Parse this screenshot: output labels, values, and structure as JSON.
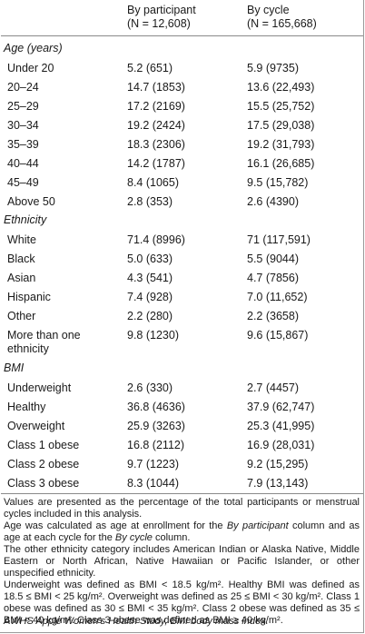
{
  "header": {
    "col1_title": "By participant",
    "col1_n": "(N = 12,608)",
    "col2_title": "By cycle",
    "col2_n": "(N = 165,668)"
  },
  "sections": [
    {
      "title": "Age (years)",
      "rows": [
        {
          "label": "Under 20",
          "by_participant": "5.2 (651)",
          "by_cycle": "5.9 (9735)"
        },
        {
          "label": "20–24",
          "by_participant": "14.7 (1853)",
          "by_cycle": "13.6 (22,493)"
        },
        {
          "label": "25–29",
          "by_participant": "17.2 (2169)",
          "by_cycle": "15.5 (25,752)"
        },
        {
          "label": "30–34",
          "by_participant": "19.2 (2424)",
          "by_cycle": "17.5 (29,038)"
        },
        {
          "label": "35–39",
          "by_participant": "18.3 (2306)",
          "by_cycle": "19.2 (31,793)"
        },
        {
          "label": "40–44",
          "by_participant": "14.2 (1787)",
          "by_cycle": "16.1 (26,685)"
        },
        {
          "label": "45–49",
          "by_participant": "8.4 (1065)",
          "by_cycle": "9.5 (15,782)"
        },
        {
          "label": "Above 50",
          "by_participant": "2.8 (353)",
          "by_cycle": "2.6 (4390)"
        }
      ]
    },
    {
      "title": "Ethnicity",
      "rows": [
        {
          "label": "White",
          "by_participant": "71.4 (8996)",
          "by_cycle": "71 (117,591)"
        },
        {
          "label": "Black",
          "by_participant": "5.0 (633)",
          "by_cycle": "5.5 (9044)"
        },
        {
          "label": "Asian",
          "by_participant": "4.3 (541)",
          "by_cycle": "4.7 (7856)"
        },
        {
          "label": "Hispanic",
          "by_participant": "7.4 (928)",
          "by_cycle": "7.0 (11,652)"
        },
        {
          "label": "Other",
          "by_participant": "2.2 (280)",
          "by_cycle": "2.2 (3658)"
        },
        {
          "label": "More than one",
          "label2": "ethnicity",
          "by_participant": "9.8 (1230)",
          "by_cycle": "9.6 (15,867)"
        }
      ]
    },
    {
      "title": "BMI",
      "rows": [
        {
          "label": "Underweight",
          "by_participant": "2.6 (330)",
          "by_cycle": "2.7 (4457)"
        },
        {
          "label": "Healthy",
          "by_participant": "36.8 (4636)",
          "by_cycle": "37.9 (62,747)"
        },
        {
          "label": "Overweight",
          "by_participant": "25.9 (3263)",
          "by_cycle": "25.3 (41,995)"
        },
        {
          "label": "Class 1 obese",
          "by_participant": "16.8 (2112)",
          "by_cycle": "16.9 (28,031)"
        },
        {
          "label": "Class 2 obese",
          "by_participant": "9.7 (1223)",
          "by_cycle": "9.2 (15,295)"
        },
        {
          "label": "Class 3 obese",
          "by_participant": "8.3 (1044)",
          "by_cycle": "7.9 (13,143)"
        }
      ]
    }
  ],
  "footnotes": {
    "values": "Values are presented as the percentage of the total participants or menstrual cycles included in this analysis.",
    "age_a": "Age was calculated as age at enrollment for the ",
    "age_i1": "By participant",
    "age_b": " column and as age at each cycle for the ",
    "age_i2": "By cycle",
    "age_c": " column.",
    "ethnicity": "The other ethnicity category includes American Indian or Alaska Native, Middle Eastern or North African, Native Hawaiian or Pacific Islander, or other unspecified ethnicity.",
    "bmi": "Underweight was defined as BMI < 18.5 kg/m². Healthy BMI was defined as 18.5 ≤ BMI < 25 kg/m². Overweight was defined as 25 ≤ BMI < 30 kg/m². Class 1 obese was defined as 30 ≤ BMI < 35 kg/m². Class 2 obese was defined as 35 ≤ BMI < 40 kg/m². Class 3 obese was defined as BMI ≥ 40 kg/m².",
    "abbr": "AWHS Apple Women's Health Study, BMI body mass index."
  }
}
